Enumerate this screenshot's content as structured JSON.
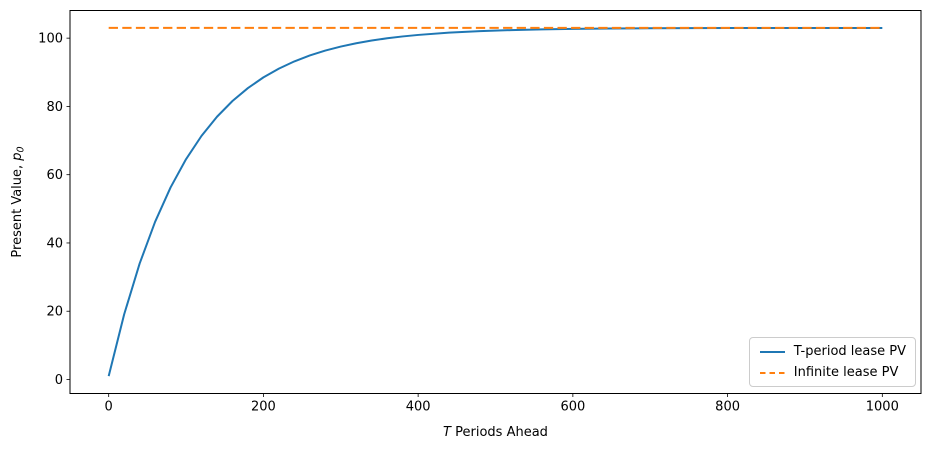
{
  "figure": {
    "background": "#ffffff",
    "spine_color": "#000000",
    "tick_color": "#000000",
    "label_color": "#000000"
  },
  "chart_data": {
    "type": "line",
    "title": "",
    "xlabel": "T Periods Ahead",
    "xlabel_parts": {
      "italic": "T",
      "rest": " Periods Ahead"
    },
    "ylabel": "Present Value, p0",
    "ylabel_parts": {
      "rest": "Present Value, ",
      "italic_var": "p",
      "subscript": "0"
    },
    "xlim": [
      -50,
      1050
    ],
    "ylim": [
      -4.1,
      108.1
    ],
    "xticks": [
      0,
      200,
      400,
      600,
      800,
      1000
    ],
    "yticks": [
      0,
      20,
      40,
      60,
      80,
      100
    ],
    "grid": false,
    "legend_position": "lower right",
    "series": [
      {
        "name": "T-period lease PV",
        "color": "#1f77b4",
        "style": "solid",
        "x": [
          0,
          20,
          40,
          60,
          80,
          100,
          120,
          140,
          160,
          180,
          200,
          220,
          240,
          260,
          280,
          300,
          320,
          340,
          360,
          380,
          400,
          440,
          480,
          520,
          560,
          600,
          650,
          700,
          750,
          800,
          850,
          900,
          950,
          1000
        ],
        "y": [
          1.0,
          19.08,
          33.96,
          46.2,
          56.27,
          64.55,
          71.37,
          76.97,
          81.59,
          85.38,
          88.51,
          91.08,
          93.19,
          94.93,
          96.36,
          97.54,
          98.51,
          99.3,
          99.96,
          100.5,
          100.94,
          101.61,
          102.06,
          102.36,
          102.57,
          102.71,
          102.82,
          102.89,
          102.93,
          102.96,
          102.97,
          102.98,
          102.99,
          102.99
        ]
      },
      {
        "name": "Infinite lease PV",
        "color": "#ff7f0e",
        "style": "dashed",
        "x": [
          0,
          1000
        ],
        "y": [
          103.0,
          103.0
        ]
      }
    ]
  }
}
